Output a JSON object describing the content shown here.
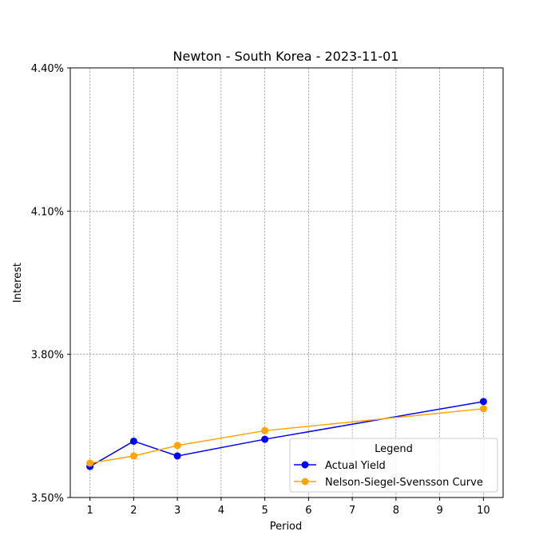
{
  "chart_data": {
    "type": "line",
    "title": "Newton - South Korea - 2023-11-01",
    "xlabel": "Period",
    "ylabel": "Interest",
    "x_ticks": [
      1,
      2,
      3,
      4,
      5,
      6,
      7,
      8,
      9,
      10
    ],
    "y_ticks": [
      3.5,
      3.8,
      4.1,
      4.4
    ],
    "y_tick_labels": [
      "3.50%",
      "3.80%",
      "4.10%",
      "4.40%"
    ],
    "xlim": [
      0.55,
      10.45
    ],
    "ylim": [
      3.5,
      4.4
    ],
    "grid": true,
    "legend": {
      "title": "Legend",
      "placement": "lower-right"
    },
    "series": [
      {
        "name": "Actual Yield",
        "color": "#0000ff",
        "x": [
          1,
          2,
          3,
          5,
          10
        ],
        "y": [
          3.565,
          3.618,
          3.587,
          3.622,
          3.701
        ]
      },
      {
        "name": "Nelson-Siegel-Svensson Curve",
        "color": "#ffa500",
        "x": [
          1,
          2,
          3,
          5,
          10
        ],
        "y": [
          3.572,
          3.587,
          3.609,
          3.64,
          3.686
        ]
      }
    ]
  }
}
